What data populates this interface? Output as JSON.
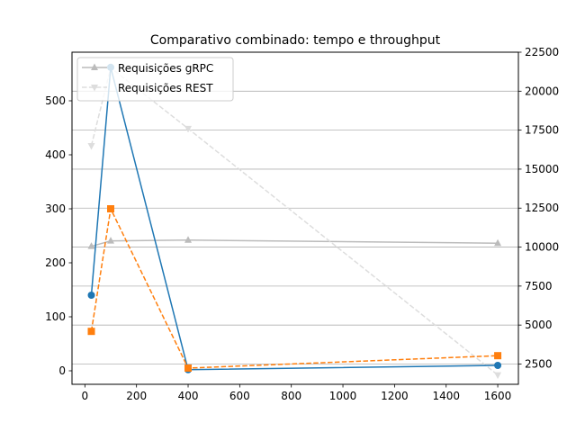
{
  "chart_data": {
    "type": "line",
    "title": "Comparativo combinado: tempo e throughput",
    "x": [
      25,
      100,
      400,
      1600
    ],
    "xlim": [
      -50,
      1680
    ],
    "xticks": [
      0,
      200,
      400,
      600,
      800,
      1000,
      1200,
      1400,
      1600
    ],
    "left_axis": {
      "ylim": [
        -25,
        590
      ],
      "ticks": [
        0,
        100,
        200,
        300,
        400,
        500
      ]
    },
    "right_axis": {
      "ylim": [
        1200,
        22500
      ],
      "ticks": [
        2500,
        5000,
        7500,
        10000,
        12500,
        15000,
        17500,
        20000,
        22500
      ],
      "grid": true
    },
    "series": [
      {
        "axis": "left",
        "color": "#1f77b4",
        "style": "solid",
        "marker": "circle",
        "values": [
          140,
          562,
          2,
          10
        ]
      },
      {
        "axis": "left",
        "color": "#ff7f0e",
        "style": "dashed",
        "marker": "square",
        "values": [
          73,
          300,
          5,
          28
        ]
      },
      {
        "axis": "right",
        "name": "Requisições gRPC",
        "color": "#bbbbbb",
        "style": "solid",
        "marker": "triangle-up",
        "values": [
          10050,
          10400,
          10450,
          10250
        ]
      },
      {
        "axis": "right",
        "name": "Requisições REST",
        "color": "#dddddd",
        "style": "dashed",
        "marker": "triangle-down",
        "values": [
          16500,
          21500,
          17600,
          1800
        ]
      }
    ],
    "legend": {
      "placement": "upper-left",
      "entries": [
        "Requisições gRPC",
        "Requisições REST"
      ]
    }
  }
}
